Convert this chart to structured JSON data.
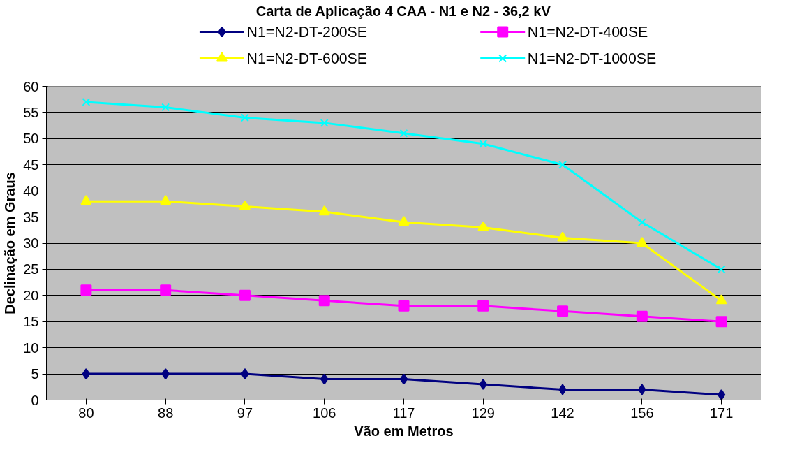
{
  "chart_data": {
    "type": "line",
    "title": "Carta de Aplicação 4 CAA - N1 e N2 - 36,2 kV",
    "xlabel": "Vão em Metros",
    "ylabel": "Declinação em Graus",
    "categories": [
      "80",
      "88",
      "97",
      "106",
      "117",
      "129",
      "142",
      "156",
      "171"
    ],
    "series": [
      {
        "name": "N1=N2-DT-200SE",
        "color": "#000080",
        "marker": "diamond",
        "values": [
          5,
          5,
          5,
          4,
          4,
          3,
          2,
          2,
          1
        ]
      },
      {
        "name": "N1=N2-DT-400SE",
        "color": "#ff00ff",
        "marker": "square",
        "values": [
          21,
          21,
          20,
          19,
          18,
          18,
          17,
          16,
          15
        ]
      },
      {
        "name": "N1=N2-DT-600SE",
        "color": "#ffff00",
        "marker": "triangle",
        "values": [
          38,
          38,
          37,
          36,
          34,
          33,
          31,
          30,
          19
        ]
      },
      {
        "name": "N1=N2-DT-1000SE",
        "color": "#00ffff",
        "marker": "x",
        "values": [
          57,
          56,
          54,
          53,
          51,
          49,
          45,
          34,
          25
        ]
      }
    ],
    "ylim": [
      0,
      60
    ],
    "yticks": [
      0,
      5,
      10,
      15,
      20,
      25,
      30,
      35,
      40,
      45,
      50,
      55,
      60
    ],
    "grid": "y",
    "legend": "top"
  }
}
